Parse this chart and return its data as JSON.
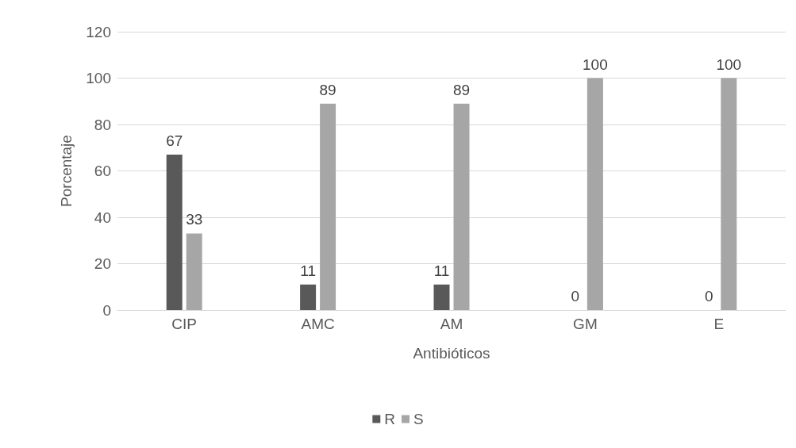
{
  "chart_data": {
    "type": "bar",
    "xlabel": "Antibióticos",
    "ylabel": "Porcentaje",
    "categories": [
      "CIP",
      "AMC",
      "AM",
      "GM",
      "E"
    ],
    "series": [
      {
        "name": "R",
        "color": "#595959",
        "values": [
          67,
          11,
          11,
          0,
          0
        ]
      },
      {
        "name": "S",
        "color": "#a6a6a6",
        "values": [
          33,
          89,
          89,
          100,
          100
        ]
      }
    ],
    "ylim": [
      0,
      120
    ],
    "yticks": [
      0,
      20,
      40,
      60,
      80,
      100,
      120
    ],
    "grid": "y",
    "legend": "bottom",
    "data_labels": true
  }
}
